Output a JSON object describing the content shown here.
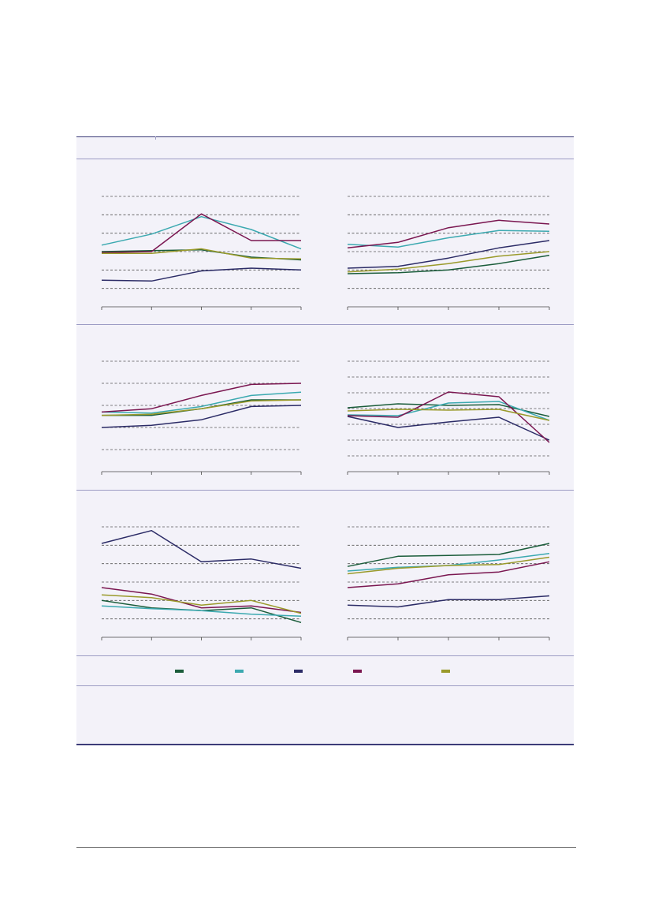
{
  "colors": {
    "panel_background": "#f3f2f9",
    "rules": "#3c3c78",
    "series_colors": [
      "#1a5c3a",
      "#3ba9b0",
      "#2b2b66",
      "#7a1650",
      "#9a9a2a"
    ]
  },
  "legend": {
    "items": [
      {
        "label": "",
        "color": "#1a5c3a"
      },
      {
        "label": "",
        "color": "#3ba9b0"
      },
      {
        "label": "",
        "color": "#2b2b66"
      },
      {
        "label": "",
        "color": "#7a1650"
      },
      {
        "label": "",
        "color": "#9a9a2a"
      }
    ]
  },
  "chart_data": [
    {
      "type": "line",
      "grid": true,
      "x": [
        1,
        2,
        3,
        4,
        5
      ],
      "ylim": [
        0,
        6
      ],
      "series": [
        {
          "color": "#1a5c3a",
          "values": [
            3.0,
            3.05,
            3.1,
            2.7,
            2.55
          ]
        },
        {
          "color": "#3ba9b0",
          "values": [
            3.35,
            3.95,
            4.9,
            4.2,
            3.15
          ]
        },
        {
          "color": "#2b2b66",
          "values": [
            1.45,
            1.4,
            1.95,
            2.1,
            2.0
          ]
        },
        {
          "color": "#7a1650",
          "values": [
            2.95,
            3.0,
            5.05,
            3.6,
            3.6
          ]
        },
        {
          "color": "#9a9a2a",
          "values": [
            2.9,
            2.9,
            3.15,
            2.65,
            2.6
          ]
        }
      ]
    },
    {
      "type": "line",
      "grid": true,
      "x": [
        1,
        2,
        3,
        4,
        5
      ],
      "ylim": [
        0,
        6
      ],
      "series": [
        {
          "color": "#1a5c3a",
          "values": [
            1.8,
            1.85,
            2.0,
            2.35,
            2.8
          ]
        },
        {
          "color": "#3ba9b0",
          "values": [
            3.4,
            3.25,
            3.75,
            4.15,
            4.1
          ]
        },
        {
          "color": "#2b2b66",
          "values": [
            2.1,
            2.2,
            2.65,
            3.2,
            3.6
          ]
        },
        {
          "color": "#7a1650",
          "values": [
            3.2,
            3.5,
            4.3,
            4.7,
            4.5
          ]
        },
        {
          "color": "#9a9a2a",
          "values": [
            1.9,
            2.05,
            2.35,
            2.75,
            3.0
          ]
        }
      ]
    },
    {
      "type": "line",
      "grid": true,
      "x": [
        1,
        2,
        3,
        4,
        5
      ],
      "ylim": [
        0,
        5
      ],
      "series": [
        {
          "color": "#1a5c3a",
          "values": [
            2.55,
            2.55,
            2.85,
            3.25,
            3.25
          ]
        },
        {
          "color": "#3ba9b0",
          "values": [
            2.7,
            2.65,
            2.95,
            3.45,
            3.6
          ]
        },
        {
          "color": "#2b2b66",
          "values": [
            2.0,
            2.1,
            2.35,
            2.95,
            3.0
          ]
        },
        {
          "color": "#7a1650",
          "values": [
            2.7,
            2.85,
            3.45,
            3.95,
            4.0
          ]
        },
        {
          "color": "#9a9a2a",
          "values": [
            2.55,
            2.6,
            2.85,
            3.2,
            3.25
          ]
        }
      ]
    },
    {
      "type": "line",
      "grid": true,
      "x": [
        1,
        2,
        3,
        4,
        5
      ],
      "ylim": [
        0,
        7
      ],
      "series": [
        {
          "color": "#1a5c3a",
          "values": [
            4.05,
            4.3,
            4.2,
            4.25,
            3.5
          ]
        },
        {
          "color": "#3ba9b0",
          "values": [
            3.6,
            3.55,
            4.35,
            4.45,
            3.25
          ]
        },
        {
          "color": "#2b2b66",
          "values": [
            3.5,
            2.8,
            3.15,
            3.45,
            2.0
          ]
        },
        {
          "color": "#7a1650",
          "values": [
            3.55,
            3.45,
            5.05,
            4.75,
            1.85
          ]
        },
        {
          "color": "#9a9a2a",
          "values": [
            3.85,
            3.95,
            3.9,
            3.95,
            3.25
          ]
        }
      ]
    },
    {
      "type": "line",
      "grid": true,
      "x": [
        1,
        2,
        3,
        4,
        5
      ],
      "ylim": [
        0,
        6
      ],
      "series": [
        {
          "color": "#1a5c3a",
          "values": [
            2.0,
            1.6,
            1.45,
            1.6,
            0.8
          ]
        },
        {
          "color": "#3ba9b0",
          "values": [
            1.7,
            1.55,
            1.45,
            1.25,
            1.15
          ]
        },
        {
          "color": "#2b2b66",
          "values": [
            5.1,
            5.8,
            4.1,
            4.25,
            3.75
          ]
        },
        {
          "color": "#7a1650",
          "values": [
            2.7,
            2.35,
            1.6,
            1.7,
            1.35
          ]
        },
        {
          "color": "#9a9a2a",
          "values": [
            2.3,
            2.15,
            1.75,
            2.0,
            1.3
          ]
        }
      ]
    },
    {
      "type": "line",
      "grid": true,
      "x": [
        1,
        2,
        3,
        4,
        5
      ],
      "ylim": [
        0,
        6
      ],
      "series": [
        {
          "color": "#1a5c3a",
          "values": [
            3.85,
            4.4,
            4.45,
            4.5,
            5.1
          ]
        },
        {
          "color": "#3ba9b0",
          "values": [
            3.6,
            3.8,
            3.9,
            4.2,
            4.55
          ]
        },
        {
          "color": "#2b2b66",
          "values": [
            1.75,
            1.65,
            2.05,
            2.05,
            2.25
          ]
        },
        {
          "color": "#7a1650",
          "values": [
            2.7,
            2.9,
            3.4,
            3.55,
            4.1
          ]
        },
        {
          "color": "#9a9a2a",
          "values": [
            3.45,
            3.75,
            3.9,
            3.95,
            4.35
          ]
        }
      ]
    }
  ]
}
